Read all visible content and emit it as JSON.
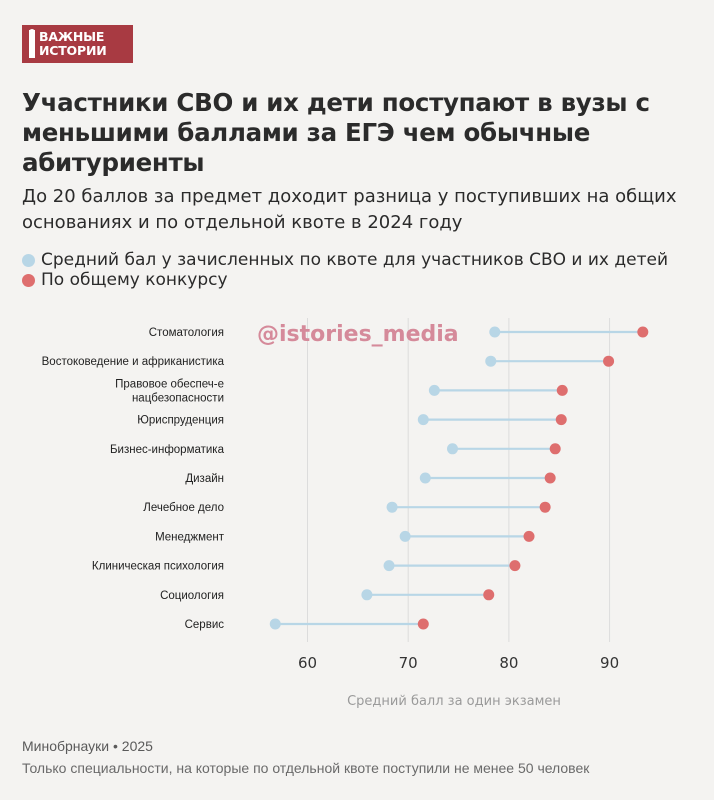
{
  "logo": {
    "line1": "ВАЖНЫЕ",
    "line2": "ИСТОРИИ"
  },
  "title": "Участники СВО и их дети поступают в вузы с меньшими баллами за ЕГЭ чем обычные абитуриенты",
  "subtitle": "До 20 баллов за предмет доходит разница у поступивших на общих основаниях и по отдельной квоте в 2024 году",
  "watermark": "@istories_media",
  "colors": {
    "quota": "#b8d6e6",
    "general": "#de6e6e",
    "brand": "#a83a42"
  },
  "chart_data": {
    "type": "dumbbell",
    "xlabel": "Средний балл за один экзамен",
    "xlim": [
      53,
      96
    ],
    "xticks": [
      60,
      70,
      80,
      90
    ],
    "grid": true,
    "legend_position": "top",
    "categories": [
      "Стоматология",
      "Востоковедение и африканистика",
      "Правовое обеспеч-е нацбезопасности",
      "Юриспруденция",
      "Бизнес-информатика",
      "Дизайн",
      "Лечебное дело",
      "Менеджмент",
      "Клиническая психология",
      "Социология",
      "Сервис"
    ],
    "series": [
      {
        "name": "Средний бал у зачисленных по квоте для участников СВО и их детей",
        "values": [
          78.6,
          78.2,
          72.6,
          71.5,
          74.4,
          71.7,
          68.4,
          69.7,
          68.1,
          65.9,
          56.8
        ]
      },
      {
        "name": "По общему конкурсу",
        "values": [
          93.3,
          89.9,
          85.3,
          85.2,
          84.6,
          84.1,
          83.6,
          82.0,
          80.6,
          78.0,
          71.5
        ]
      }
    ]
  },
  "footer": {
    "source": "Минобрнауки • 2025",
    "note": "Только специальности, на которые по отдельной квоте поступили не менее 50 человек"
  }
}
